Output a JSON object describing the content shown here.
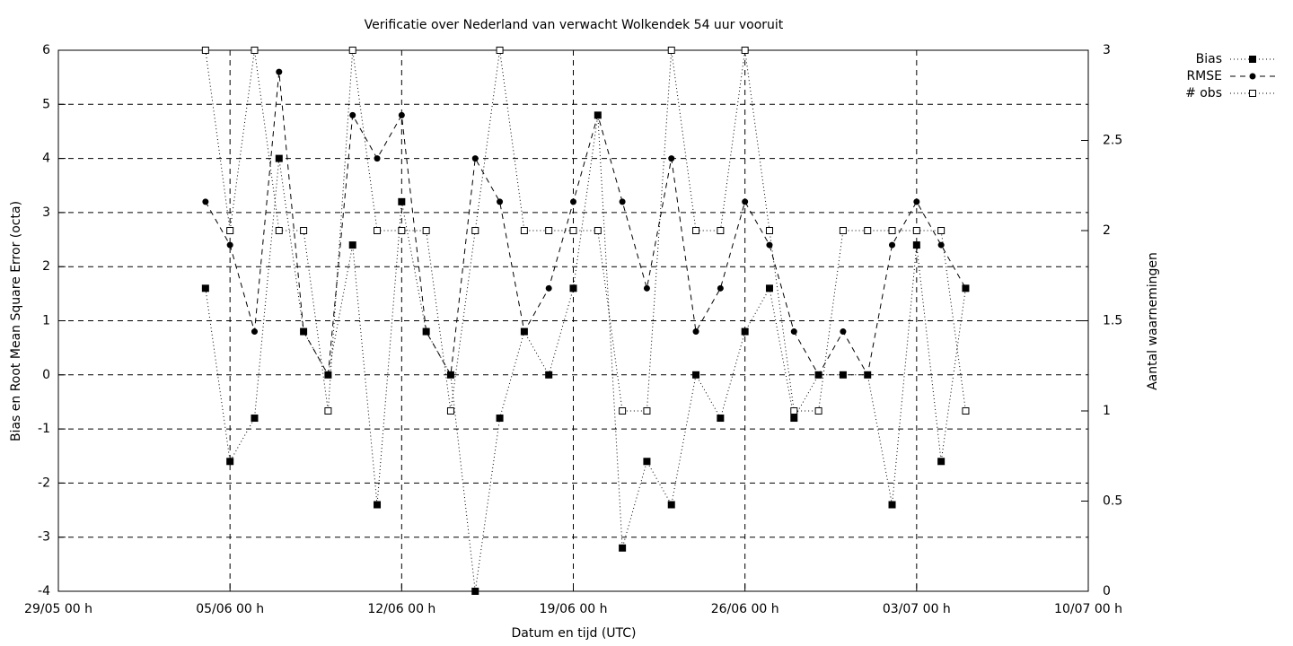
{
  "chart_data": {
    "type": "line",
    "title": "Verificatie over Nederland van verwacht Wolkendek 54 uur vooruit",
    "x_label": "Datum en tijd (UTC)",
    "y_label": "Bias en Root Mean Square Error (octa)",
    "y2_label": "Aantal waarnemingen",
    "x": [
      "04/06 00 h",
      "05/06 00 h",
      "06/06 00 h",
      "07/06 00 h",
      "08/06 00 h",
      "09/06 00 h",
      "10/06 00 h",
      "11/06 00 h",
      "12/06 00 h",
      "13/06 00 h",
      "14/06 00 h",
      "15/06 00 h",
      "16/06 00 h",
      "17/06 00 h",
      "18/06 00 h",
      "19/06 00 h",
      "20/06 00 h",
      "21/06 00 h",
      "22/06 00 h",
      "23/06 00 h",
      "24/06 00 h",
      "25/06 00 h",
      "26/06 00 h",
      "27/06 00 h",
      "28/06 00 h",
      "29/06 00 h",
      "30/06 00 h",
      "01/07 00 h",
      "02/07 00 h",
      "03/07 00 h",
      "04/07 00 h",
      "05/07 00 h"
    ],
    "series": [
      {
        "name": "Bias",
        "color": "#000000",
        "marker": "filled-square",
        "line_style": "dotted",
        "values": [
          1.6,
          -1.6,
          -0.8,
          4,
          0.8,
          0,
          2.4,
          -2.4,
          3.2,
          0.8,
          0,
          -4,
          -0.8,
          0.8,
          0,
          1.6,
          4.8,
          -3.2,
          -1.6,
          -2.4,
          0,
          -0.8,
          0.8,
          1.6,
          -0.8,
          0,
          0,
          0,
          -2.4,
          2.4,
          -1.6,
          1.6
        ]
      },
      {
        "name": "RMSE",
        "color": "#000000",
        "marker": "filled-circle",
        "line_style": "dashed",
        "values": [
          3.2,
          2.4,
          0.8,
          5.6,
          0.8,
          0,
          4.8,
          4,
          4.8,
          0.8,
          0,
          4,
          3.2,
          0.8,
          1.6,
          3.2,
          4.8,
          3.2,
          1.6,
          4,
          0.8,
          1.6,
          3.2,
          2.4,
          0.8,
          0,
          0.8,
          0,
          2.4,
          3.2,
          2.4,
          1.6
        ]
      },
      {
        "name": "# obs",
        "color": "#000000",
        "marker": "open-square",
        "line_style": "dotted",
        "axis": "y2",
        "values": [
          3,
          2,
          3,
          2,
          2,
          1,
          3,
          2,
          2,
          2,
          1,
          2,
          3,
          2,
          2,
          2,
          2,
          1,
          1,
          3,
          2,
          2,
          3,
          2,
          1,
          1,
          2,
          2,
          2,
          2,
          2,
          1
        ]
      }
    ],
    "xlim": [
      "29/05 00 h",
      "10/07 00 h"
    ],
    "xticks": [
      "29/05 00 h",
      "05/06 00 h",
      "12/06 00 h",
      "19/06 00 h",
      "26/06 00 h",
      "03/07 00 h",
      "10/07 00 h"
    ],
    "ylim": [
      -4,
      6
    ],
    "yticks": [
      -4,
      -3,
      -2,
      -1,
      0,
      1,
      2,
      3,
      4,
      5,
      6
    ],
    "y2lim": [
      0,
      3
    ],
    "y2ticks": [
      0,
      0.5,
      1,
      1.5,
      2,
      2.5,
      3
    ],
    "grid": true,
    "legend": "outside-top-right"
  }
}
